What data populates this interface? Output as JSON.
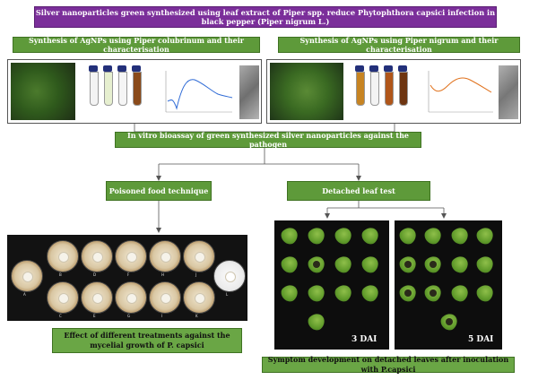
{
  "title": "Silver nanoparticles green synthesized using leaf extract of Piper spp. reduce Phytophthora capsici infection in black pepper (Piper nigrum L.)",
  "left_synthesis": "Synthesis of AgNPs using Piper colubrinum and their characterisation",
  "right_synthesis": "Synthesis of AgNPs using Piper nigrum and their characterisation",
  "bioassay": "In vitro bioassay of green synthesized silver nanoparticles against the pathogen",
  "poisoned_food": "Poisoned food technique",
  "detached_leaf": "Detached leaf test",
  "effect_caption": "Effect of different treatments against the mycelial growth of P. capsici",
  "symptom_caption": "Symptom development on detached leaves after inoculation with P.capsici",
  "dai_3": "3 DAI",
  "dai_5": "5 DAI",
  "plate_labels_top": [
    "B",
    "D",
    "F",
    "H",
    "J"
  ],
  "plate_label_left": "A",
  "plate_label_right": "L",
  "plate_labels_bottom": [
    "C",
    "E",
    "G",
    "I",
    "K"
  ],
  "colors": {
    "title_bg": "#7b2f9a",
    "green_box": "#5e9a3a",
    "label_box": "#6aa645"
  }
}
